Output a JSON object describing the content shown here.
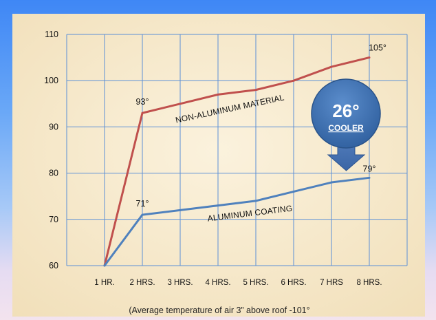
{
  "chart_data": {
    "type": "line",
    "categories": [
      "1 HR.",
      "2 HRS.",
      "3 HRS.",
      "4 HRS.",
      "5 HRS.",
      "6 HRS.",
      "7 HRS",
      "8 HRS."
    ],
    "series": [
      {
        "name": "NON-ALUMINUM MATERIAL",
        "values": [
          60,
          93,
          95,
          97,
          98,
          100,
          103,
          105
        ],
        "color": "#c0504d"
      },
      {
        "name": "ALUMINUM COATING",
        "values": [
          60,
          71,
          72,
          73,
          74,
          76,
          78,
          79
        ],
        "color": "#4f81bd"
      }
    ],
    "ylim": [
      60,
      110
    ],
    "yticks": [
      60,
      70,
      80,
      90,
      100,
      110
    ],
    "grid": true,
    "annotations": {
      "non_aluminum_start": "93°",
      "non_aluminum_end": "105°",
      "aluminum_start": "71°",
      "aluminum_end": "79°",
      "badge_value": "26°",
      "badge_label": "COOLER"
    },
    "footnote": "(Average temperature of air 3” above roof  -101°"
  },
  "colors": {
    "plot_background": "#f6e8c8",
    "badge_fill": "#3a6aa8",
    "grid": "#5b8fd6"
  }
}
